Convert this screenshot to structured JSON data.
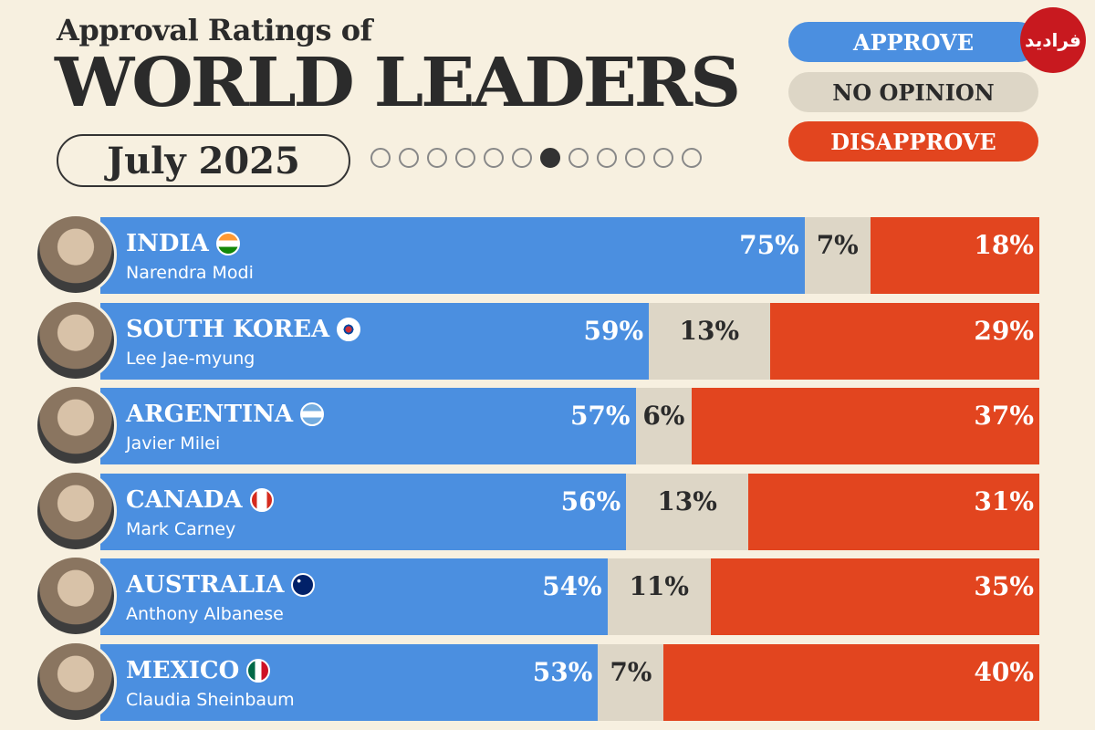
{
  "header": {
    "subtitle": "Approval Ratings of",
    "title": "WORLD LEADERS",
    "date": "July 2025",
    "pager": {
      "total": 12,
      "active_index": 6
    }
  },
  "legend": {
    "approve": "APPROVE",
    "no_opinion": "NO OPINION",
    "disapprove": "DISAPPROVE"
  },
  "logo": {
    "text": "فرادید"
  },
  "colors": {
    "approve": "#4b8fe0",
    "no_opinion": "#ddd6c6",
    "disapprove": "#e2451f",
    "background": "#f7f0e0"
  },
  "chart_data": {
    "type": "bar",
    "orientation": "horizontal-stacked",
    "title": "Approval Ratings of WORLD LEADERS",
    "subtitle": "July 2025",
    "series_names": [
      "APPROVE",
      "NO OPINION",
      "DISAPPROVE"
    ],
    "rows": [
      {
        "country": "INDIA",
        "leader": "Narendra Modi",
        "flag": "india-flag-icon",
        "approve": 75,
        "no_opinion": 7,
        "disapprove": 18,
        "approve_label": "75%",
        "no_opinion_label": "7%",
        "disapprove_label": "18%"
      },
      {
        "country": "SOUTH KOREA",
        "leader": "Lee Jae-myung",
        "flag": "south-korea-flag-icon",
        "approve": 59,
        "no_opinion": 13,
        "disapprove": 29,
        "approve_label": "59%",
        "no_opinion_label": "13%",
        "disapprove_label": "29%"
      },
      {
        "country": "ARGENTINA",
        "leader": "Javier Milei",
        "flag": "argentina-flag-icon",
        "approve": 57,
        "no_opinion": 6,
        "disapprove": 37,
        "approve_label": "57%",
        "no_opinion_label": "6%",
        "disapprove_label": "37%"
      },
      {
        "country": "CANADA",
        "leader": "Mark Carney",
        "flag": "canada-flag-icon",
        "approve": 56,
        "no_opinion": 13,
        "disapprove": 31,
        "approve_label": "56%",
        "no_opinion_label": "13%",
        "disapprove_label": "31%"
      },
      {
        "country": "AUSTRALIA",
        "leader": "Anthony Albanese",
        "flag": "australia-flag-icon",
        "approve": 54,
        "no_opinion": 11,
        "disapprove": 35,
        "approve_label": "54%",
        "no_opinion_label": "11%",
        "disapprove_label": "35%"
      },
      {
        "country": "MEXICO",
        "leader": "Claudia Sheinbaum",
        "flag": "mexico-flag-icon",
        "approve": 53,
        "no_opinion": 7,
        "disapprove": 40,
        "approve_label": "53%",
        "no_opinion_label": "7%",
        "disapprove_label": "40%"
      }
    ]
  }
}
